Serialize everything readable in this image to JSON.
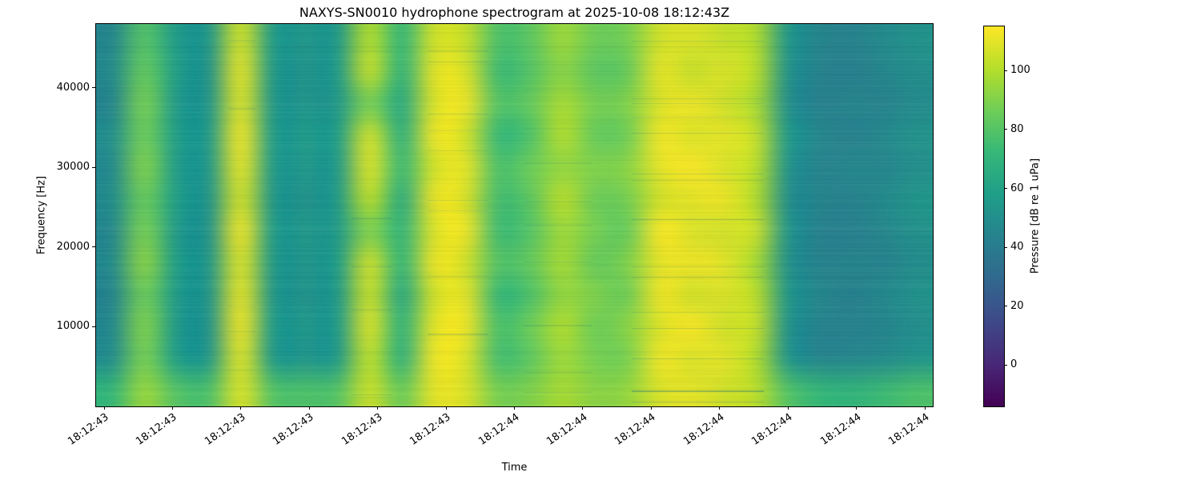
{
  "figure": {
    "title": "NAXYS-SN0010 hydrophone spectrogram at 2025-10-08 18:12:43Z",
    "xlabel": "Time",
    "ylabel": "Frequency [Hz]",
    "colorbar_label": "Pressure [dB re 1 uPa]"
  },
  "chart_data": {
    "type": "heatmap",
    "title": "NAXYS-SN0010 hydrophone spectrogram at 2025-10-08 18:12:43Z",
    "xlabel": "Time",
    "ylabel": "Frequency [Hz]",
    "x_tick_labels": [
      "18:12:43",
      "18:12:43",
      "18:12:43",
      "18:12:43",
      "18:12:43",
      "18:12:43",
      "18:12:44",
      "18:12:44",
      "18:12:44",
      "18:12:44",
      "18:12:44",
      "18:12:44",
      "18:12:44"
    ],
    "y_ticks": [
      10000,
      20000,
      30000,
      40000
    ],
    "y_range_hz": [
      0,
      48000
    ],
    "colorbar": {
      "label": "Pressure [dB re 1 uPa]",
      "ticks": [
        0,
        20,
        40,
        60,
        80,
        100
      ],
      "vmin": -14,
      "vmax": 115
    },
    "colormap": {
      "name": "viridis",
      "anchors": [
        "#440154",
        "#482878",
        "#3e4989",
        "#31688e",
        "#26828e",
        "#1f9e89",
        "#35b779",
        "#6ece58",
        "#b5de2b",
        "#fde725"
      ]
    },
    "grid": {
      "rows": 12,
      "cols": 26,
      "orientation": "rows top-to-bottom = 48000 Hz down to 0 Hz; cols left-to-right in time",
      "values_db": [
        [
          46,
          80,
          56,
          54,
          106,
          56,
          54,
          55,
          100,
          72,
          106,
          104,
          78,
          82,
          96,
          86,
          88,
          106,
          108,
          104,
          100,
          54,
          45,
          44,
          48,
          52
        ],
        [
          48,
          84,
          58,
          52,
          110,
          55,
          52,
          56,
          104,
          70,
          110,
          108,
          74,
          80,
          92,
          82,
          84,
          110,
          104,
          108,
          102,
          52,
          44,
          42,
          46,
          50
        ],
        [
          45,
          88,
          55,
          53,
          108,
          54,
          53,
          54,
          88,
          64,
          108,
          112,
          80,
          84,
          98,
          88,
          90,
          108,
          112,
          106,
          98,
          50,
          43,
          45,
          44,
          48
        ],
        [
          50,
          86,
          57,
          55,
          112,
          56,
          55,
          57,
          106,
          68,
          112,
          106,
          72,
          78,
          100,
          84,
          86,
          112,
          108,
          110,
          104,
          55,
          46,
          43,
          47,
          52
        ],
        [
          47,
          90,
          56,
          54,
          110,
          55,
          54,
          55,
          108,
          74,
          106,
          110,
          78,
          86,
          94,
          90,
          92,
          110,
          114,
          108,
          102,
          52,
          44,
          46,
          45,
          50
        ],
        [
          49,
          85,
          58,
          53,
          106,
          54,
          52,
          56,
          102,
          66,
          112,
          108,
          76,
          82,
          102,
          86,
          88,
          106,
          110,
          112,
          100,
          50,
          45,
          44,
          48,
          54
        ],
        [
          46,
          88,
          55,
          52,
          112,
          56,
          54,
          55,
          90,
          70,
          108,
          112,
          74,
          80,
          96,
          88,
          84,
          114,
          108,
          106,
          105,
          53,
          43,
          42,
          46,
          51
        ],
        [
          48,
          92,
          57,
          54,
          108,
          55,
          53,
          57,
          106,
          72,
          112,
          106,
          80,
          84,
          98,
          84,
          90,
          110,
          112,
          110,
          98,
          51,
          44,
          45,
          44,
          49
        ],
        [
          45,
          86,
          56,
          53,
          110,
          54,
          52,
          55,
          104,
          64,
          106,
          110,
          72,
          78,
          94,
          90,
          86,
          112,
          106,
          108,
          102,
          54,
          46,
          43,
          47,
          52
        ],
        [
          47,
          90,
          55,
          52,
          112,
          56,
          54,
          56,
          108,
          70,
          110,
          112,
          78,
          86,
          100,
          86,
          92,
          108,
          114,
          106,
          104,
          52,
          44,
          44,
          45,
          50
        ],
        [
          49,
          88,
          57,
          54,
          108,
          55,
          53,
          55,
          102,
          68,
          112,
          108,
          76,
          82,
          96,
          88,
          88,
          112,
          108,
          110,
          100,
          53,
          45,
          46,
          48,
          53
        ],
        [
          72,
          95,
          80,
          78,
          108,
          80,
          78,
          80,
          105,
          85,
          110,
          108,
          88,
          90,
          98,
          92,
          94,
          108,
          110,
          106,
          102,
          80,
          72,
          70,
          74,
          78
        ]
      ]
    }
  }
}
